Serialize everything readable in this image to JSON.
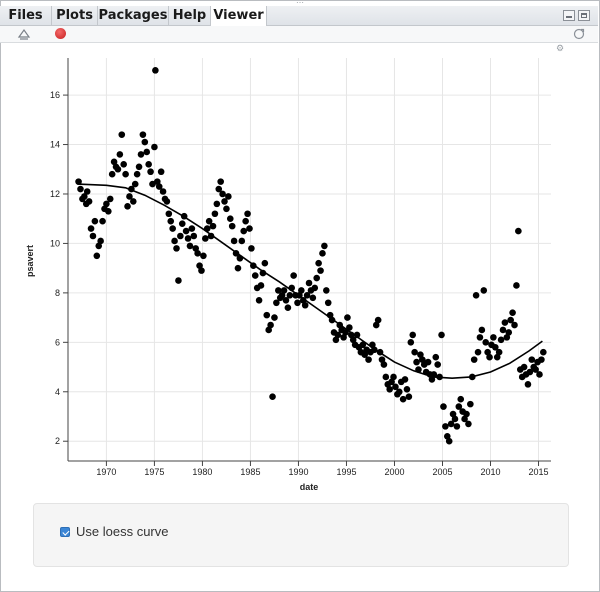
{
  "tabs": [
    {
      "label": "Files",
      "active": false
    },
    {
      "label": "Plots",
      "active": false
    },
    {
      "label": "Packages",
      "active": false
    },
    {
      "label": "Help",
      "active": false
    },
    {
      "label": "Viewer",
      "active": true
    }
  ],
  "toolbar": {
    "icons": [
      "clear-viewer-icon",
      "stop-icon",
      "refresh-icon"
    ]
  },
  "controls": {
    "loess_label": "Use loess curve",
    "loess_checked": true
  },
  "chart_data": {
    "type": "scatter",
    "xlabel": "date",
    "ylabel": "psavert",
    "xlim": [
      1966.0,
      2016.3
    ],
    "ylim": [
      1.2,
      17.5
    ],
    "xticks": [
      1970,
      1975,
      1980,
      1985,
      1990,
      1995,
      2000,
      2005,
      2010,
      2015
    ],
    "yticks": [
      2,
      4,
      6,
      8,
      10,
      12,
      14,
      16
    ],
    "grid": true,
    "points": [
      [
        1967.1,
        12.5
      ],
      [
        1967.3,
        12.2
      ],
      [
        1967.5,
        11.8
      ],
      [
        1967.7,
        11.9
      ],
      [
        1967.9,
        11.6
      ],
      [
        1968.0,
        12.1
      ],
      [
        1968.2,
        11.7
      ],
      [
        1968.4,
        10.6
      ],
      [
        1968.6,
        10.3
      ],
      [
        1968.8,
        10.9
      ],
      [
        1969.0,
        9.5
      ],
      [
        1969.2,
        9.9
      ],
      [
        1969.4,
        10.1
      ],
      [
        1969.6,
        10.9
      ],
      [
        1969.8,
        11.4
      ],
      [
        1970.0,
        11.6
      ],
      [
        1970.2,
        11.3
      ],
      [
        1970.4,
        11.8
      ],
      [
        1970.6,
        12.8
      ],
      [
        1970.8,
        13.3
      ],
      [
        1971.0,
        13.1
      ],
      [
        1971.2,
        13.0
      ],
      [
        1971.4,
        13.6
      ],
      [
        1971.6,
        14.4
      ],
      [
        1971.8,
        13.2
      ],
      [
        1972.0,
        12.8
      ],
      [
        1972.2,
        11.5
      ],
      [
        1972.4,
        11.9
      ],
      [
        1972.6,
        12.2
      ],
      [
        1972.8,
        11.7
      ],
      [
        1973.0,
        12.4
      ],
      [
        1973.2,
        12.8
      ],
      [
        1973.4,
        13.1
      ],
      [
        1973.6,
        13.6
      ],
      [
        1973.8,
        14.4
      ],
      [
        1974.0,
        14.1
      ],
      [
        1974.2,
        13.7
      ],
      [
        1974.4,
        13.2
      ],
      [
        1974.6,
        12.9
      ],
      [
        1974.8,
        12.4
      ],
      [
        1975.0,
        13.9
      ],
      [
        1975.1,
        17.0
      ],
      [
        1975.3,
        12.5
      ],
      [
        1975.5,
        12.3
      ],
      [
        1975.7,
        12.9
      ],
      [
        1975.9,
        12.1
      ],
      [
        1976.1,
        11.8
      ],
      [
        1976.3,
        11.7
      ],
      [
        1976.5,
        11.2
      ],
      [
        1976.7,
        10.9
      ],
      [
        1976.9,
        10.6
      ],
      [
        1977.1,
        10.1
      ],
      [
        1977.3,
        9.8
      ],
      [
        1977.5,
        8.5
      ],
      [
        1977.7,
        10.3
      ],
      [
        1977.9,
        10.8
      ],
      [
        1978.1,
        11.1
      ],
      [
        1978.3,
        10.5
      ],
      [
        1978.5,
        10.2
      ],
      [
        1978.7,
        9.9
      ],
      [
        1978.9,
        10.6
      ],
      [
        1979.1,
        10.3
      ],
      [
        1979.3,
        9.8
      ],
      [
        1979.5,
        9.6
      ],
      [
        1979.7,
        9.1
      ],
      [
        1979.9,
        8.9
      ],
      [
        1980.1,
        9.5
      ],
      [
        1980.3,
        10.2
      ],
      [
        1980.5,
        10.6
      ],
      [
        1980.7,
        10.9
      ],
      [
        1980.9,
        10.3
      ],
      [
        1981.1,
        10.7
      ],
      [
        1981.3,
        11.2
      ],
      [
        1981.5,
        11.6
      ],
      [
        1981.7,
        12.2
      ],
      [
        1981.9,
        12.5
      ],
      [
        1982.1,
        12.0
      ],
      [
        1982.3,
        11.7
      ],
      [
        1982.5,
        11.4
      ],
      [
        1982.7,
        11.9
      ],
      [
        1982.9,
        11.0
      ],
      [
        1983.1,
        10.7
      ],
      [
        1983.3,
        10.1
      ],
      [
        1983.5,
        9.6
      ],
      [
        1983.7,
        9.0
      ],
      [
        1983.9,
        9.4
      ],
      [
        1984.1,
        10.1
      ],
      [
        1984.3,
        10.5
      ],
      [
        1984.5,
        10.9
      ],
      [
        1984.7,
        11.2
      ],
      [
        1984.9,
        10.6
      ],
      [
        1985.1,
        9.8
      ],
      [
        1985.3,
        9.1
      ],
      [
        1985.5,
        8.7
      ],
      [
        1985.7,
        8.2
      ],
      [
        1985.9,
        7.7
      ],
      [
        1986.1,
        8.3
      ],
      [
        1986.3,
        8.8
      ],
      [
        1986.5,
        9.2
      ],
      [
        1986.7,
        7.1
      ],
      [
        1986.9,
        6.5
      ],
      [
        1987.1,
        6.7
      ],
      [
        1987.3,
        3.8
      ],
      [
        1987.5,
        7.0
      ],
      [
        1987.7,
        7.6
      ],
      [
        1987.9,
        8.1
      ],
      [
        1988.1,
        7.8
      ],
      [
        1988.3,
        7.9
      ],
      [
        1988.5,
        8.1
      ],
      [
        1988.7,
        7.7
      ],
      [
        1988.9,
        7.4
      ],
      [
        1989.1,
        7.9
      ],
      [
        1989.3,
        8.2
      ],
      [
        1989.5,
        8.7
      ],
      [
        1989.7,
        7.9
      ],
      [
        1989.9,
        7.6
      ],
      [
        1990.1,
        7.9
      ],
      [
        1990.3,
        8.1
      ],
      [
        1990.5,
        7.7
      ],
      [
        1990.7,
        7.5
      ],
      [
        1990.9,
        7.9
      ],
      [
        1991.1,
        8.4
      ],
      [
        1991.3,
        8.1
      ],
      [
        1991.5,
        7.8
      ],
      [
        1991.7,
        8.2
      ],
      [
        1991.9,
        8.6
      ],
      [
        1992.1,
        9.2
      ],
      [
        1992.3,
        8.9
      ],
      [
        1992.5,
        9.6
      ],
      [
        1992.7,
        9.9
      ],
      [
        1992.9,
        8.1
      ],
      [
        1993.1,
        7.6
      ],
      [
        1993.3,
        7.1
      ],
      [
        1993.5,
        6.9
      ],
      [
        1993.7,
        6.4
      ],
      [
        1993.9,
        6.1
      ],
      [
        1994.1,
        6.3
      ],
      [
        1994.3,
        6.7
      ],
      [
        1994.5,
        6.5
      ],
      [
        1994.7,
        6.2
      ],
      [
        1994.9,
        6.4
      ],
      [
        1995.1,
        7.0
      ],
      [
        1995.3,
        6.6
      ],
      [
        1995.5,
        6.3
      ],
      [
        1995.7,
        6.1
      ],
      [
        1995.9,
        5.9
      ],
      [
        1996.1,
        6.3
      ],
      [
        1996.3,
        5.8
      ],
      [
        1996.5,
        5.6
      ],
      [
        1996.7,
        5.9
      ],
      [
        1996.9,
        5.5
      ],
      [
        1997.1,
        5.7
      ],
      [
        1997.3,
        5.3
      ],
      [
        1997.5,
        5.6
      ],
      [
        1997.7,
        5.9
      ],
      [
        1997.9,
        5.7
      ],
      [
        1998.1,
        6.7
      ],
      [
        1998.3,
        6.9
      ],
      [
        1998.5,
        5.6
      ],
      [
        1998.7,
        5.3
      ],
      [
        1998.9,
        5.1
      ],
      [
        1999.1,
        4.6
      ],
      [
        1999.3,
        4.3
      ],
      [
        1999.5,
        4.1
      ],
      [
        1999.7,
        4.4
      ],
      [
        1999.9,
        4.6
      ],
      [
        2000.1,
        4.2
      ],
      [
        2000.3,
        3.9
      ],
      [
        2000.5,
        4.0
      ],
      [
        2000.7,
        4.4
      ],
      [
        2000.9,
        3.7
      ],
      [
        2001.1,
        4.5
      ],
      [
        2001.3,
        4.1
      ],
      [
        2001.5,
        3.8
      ],
      [
        2001.7,
        6.0
      ],
      [
        2001.9,
        6.3
      ],
      [
        2002.1,
        5.6
      ],
      [
        2002.3,
        5.2
      ],
      [
        2002.5,
        4.9
      ],
      [
        2002.7,
        5.5
      ],
      [
        2002.9,
        5.3
      ],
      [
        2003.1,
        5.1
      ],
      [
        2003.3,
        4.8
      ],
      [
        2003.5,
        5.2
      ],
      [
        2003.7,
        4.7
      ],
      [
        2003.9,
        4.5
      ],
      [
        2004.1,
        4.7
      ],
      [
        2004.3,
        5.4
      ],
      [
        2004.5,
        5.1
      ],
      [
        2004.7,
        4.6
      ],
      [
        2004.9,
        6.3
      ],
      [
        2005.1,
        3.4
      ],
      [
        2005.3,
        2.6
      ],
      [
        2005.5,
        2.2
      ],
      [
        2005.7,
        2.0
      ],
      [
        2005.9,
        2.7
      ],
      [
        2006.1,
        3.1
      ],
      [
        2006.3,
        2.9
      ],
      [
        2006.5,
        2.6
      ],
      [
        2006.7,
        3.4
      ],
      [
        2006.9,
        3.7
      ],
      [
        2007.1,
        3.2
      ],
      [
        2007.3,
        2.9
      ],
      [
        2007.5,
        3.1
      ],
      [
        2007.7,
        2.7
      ],
      [
        2007.9,
        3.5
      ],
      [
        2008.1,
        4.6
      ],
      [
        2008.3,
        5.3
      ],
      [
        2008.5,
        7.9
      ],
      [
        2008.7,
        5.6
      ],
      [
        2008.9,
        6.2
      ],
      [
        2009.1,
        6.5
      ],
      [
        2009.3,
        8.1
      ],
      [
        2009.5,
        6.0
      ],
      [
        2009.7,
        5.6
      ],
      [
        2009.9,
        5.4
      ],
      [
        2010.1,
        5.9
      ],
      [
        2010.3,
        6.2
      ],
      [
        2010.5,
        5.8
      ],
      [
        2010.7,
        5.4
      ],
      [
        2010.9,
        5.6
      ],
      [
        2011.1,
        6.1
      ],
      [
        2011.3,
        6.5
      ],
      [
        2011.5,
        6.8
      ],
      [
        2011.7,
        6.2
      ],
      [
        2011.9,
        6.4
      ],
      [
        2012.1,
        6.9
      ],
      [
        2012.3,
        7.2
      ],
      [
        2012.5,
        6.7
      ],
      [
        2012.7,
        8.3
      ],
      [
        2012.9,
        10.5
      ],
      [
        2013.1,
        4.9
      ],
      [
        2013.3,
        4.6
      ],
      [
        2013.5,
        5.0
      ],
      [
        2013.7,
        4.7
      ],
      [
        2013.9,
        4.3
      ],
      [
        2014.1,
        4.8
      ],
      [
        2014.3,
        5.3
      ],
      [
        2014.5,
        5.0
      ],
      [
        2014.7,
        4.9
      ],
      [
        2014.9,
        5.2
      ],
      [
        2015.1,
        4.7
      ],
      [
        2015.3,
        5.3
      ],
      [
        2015.5,
        5.6
      ]
    ],
    "loess": [
      [
        1967,
        12.4
      ],
      [
        1970,
        12.35
      ],
      [
        1972,
        12.25
      ],
      [
        1974,
        11.95
      ],
      [
        1976,
        11.55
      ],
      [
        1978,
        11.1
      ],
      [
        1980,
        10.6
      ],
      [
        1982,
        10.05
      ],
      [
        1984,
        9.5
      ],
      [
        1986,
        8.95
      ],
      [
        1988,
        8.45
      ],
      [
        1990,
        7.9
      ],
      [
        1992,
        7.35
      ],
      [
        1994,
        6.8
      ],
      [
        1996,
        6.25
      ],
      [
        1998,
        5.7
      ],
      [
        2000,
        5.2
      ],
      [
        2002,
        4.85
      ],
      [
        2004,
        4.6
      ],
      [
        2006,
        4.55
      ],
      [
        2008,
        4.6
      ],
      [
        2010,
        4.8
      ],
      [
        2012,
        5.15
      ],
      [
        2014,
        5.65
      ],
      [
        2015.4,
        6.05
      ]
    ]
  }
}
